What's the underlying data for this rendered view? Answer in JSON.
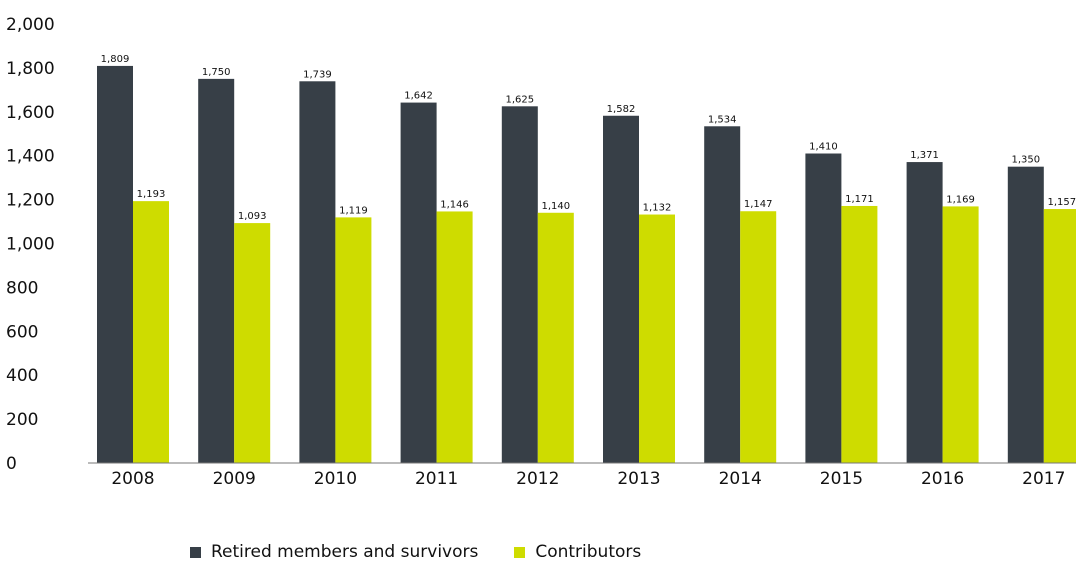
{
  "chart_data": {
    "type": "bar",
    "categories": [
      "2008",
      "2009",
      "2010",
      "2011",
      "2012",
      "2013",
      "2014",
      "2015",
      "2016",
      "2017"
    ],
    "series": [
      {
        "name": "Retired members and survivors",
        "color": "#373f47",
        "values": [
          1809,
          1750,
          1739,
          1642,
          1625,
          1582,
          1534,
          1410,
          1371,
          1350
        ],
        "labels": [
          "1,809",
          "1,750",
          "1,739",
          "1,642",
          "1,625",
          "1,582",
          "1,534",
          "1,410",
          "1,371",
          "1,350"
        ]
      },
      {
        "name": "Contributors",
        "color": "#cedc00",
        "values": [
          1193,
          1093,
          1119,
          1146,
          1140,
          1132,
          1147,
          1171,
          1169,
          1157
        ],
        "labels": [
          "1,193",
          "1,093",
          "1,119",
          "1,146",
          "1,140",
          "1,132",
          "1,147",
          "1,171",
          "1,169",
          "1,157"
        ]
      }
    ],
    "ylim": [
      0,
      2000
    ],
    "yticks": [
      0,
      200,
      400,
      600,
      800,
      1000,
      1200,
      1400,
      1600,
      1800,
      2000
    ],
    "ytick_labels": [
      "0",
      "200",
      "400",
      "600",
      "800",
      "1,000",
      "1,200",
      "1,400",
      "1,600",
      "1,800",
      "2,000"
    ],
    "grid": false,
    "legend_position": "bottom",
    "title": "",
    "xlabel": "",
    "ylabel": ""
  },
  "legend": {
    "items": [
      {
        "label": "Retired members and survivors"
      },
      {
        "label": "Contributors"
      }
    ]
  }
}
